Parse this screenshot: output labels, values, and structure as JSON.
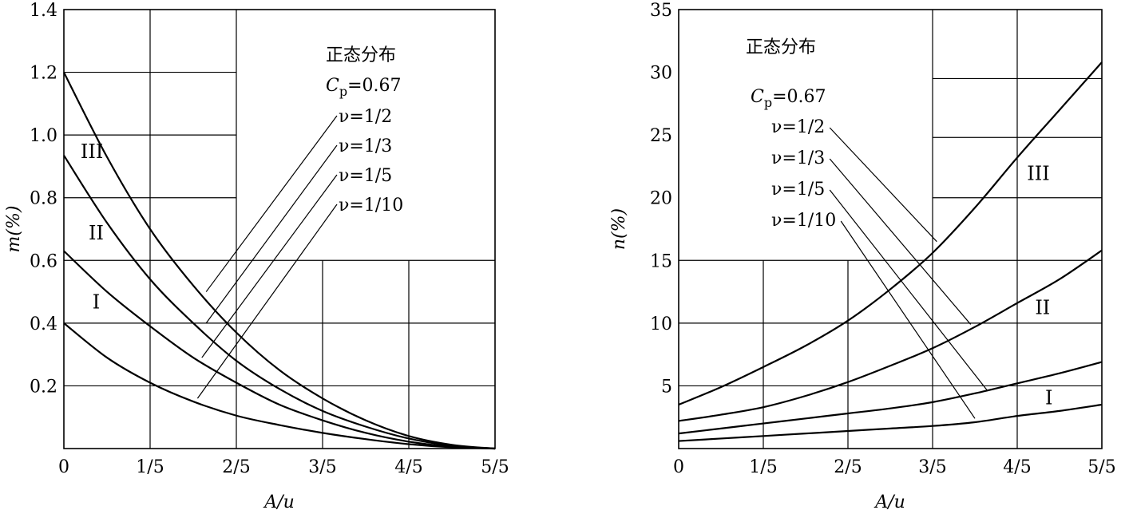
{
  "chart_data": [
    {
      "type": "line",
      "xlabel": "A/u",
      "ylabel": "m(%)",
      "xlim": [
        0,
        1
      ],
      "ylim": [
        0,
        1.4
      ],
      "xticks": [
        {
          "v": 0,
          "label": "0"
        },
        {
          "v": 0.2,
          "label": "1/5"
        },
        {
          "v": 0.4,
          "label": "2/5"
        },
        {
          "v": 0.6,
          "label": "3/5"
        },
        {
          "v": 0.8,
          "label": "4/5"
        },
        {
          "v": 1.0,
          "label": "5/5"
        }
      ],
      "yticks": [
        {
          "v": 0.2,
          "label": "0.2"
        },
        {
          "v": 0.4,
          "label": "0.4"
        },
        {
          "v": 0.6,
          "label": "0.6"
        },
        {
          "v": 0.8,
          "label": "0.8"
        },
        {
          "v": 1.0,
          "label": "1.0"
        },
        {
          "v": 1.2,
          "label": "1.2"
        },
        {
          "v": 1.4,
          "label": "1.4"
        }
      ],
      "x": [
        0,
        0.1,
        0.2,
        0.3,
        0.4,
        0.5,
        0.6,
        0.7,
        0.8,
        0.9,
        1.0
      ],
      "series": [
        {
          "values": [
            1.2,
            0.93,
            0.7,
            0.52,
            0.37,
            0.25,
            0.16,
            0.09,
            0.04,
            0.012,
            0
          ]
        },
        {
          "values": [
            0.935,
            0.72,
            0.54,
            0.4,
            0.28,
            0.19,
            0.12,
            0.07,
            0.032,
            0.009,
            0
          ]
        },
        {
          "values": [
            0.63,
            0.5,
            0.39,
            0.29,
            0.21,
            0.14,
            0.09,
            0.05,
            0.022,
            0.006,
            0
          ]
        },
        {
          "values": [
            0.4,
            0.29,
            0.21,
            0.15,
            0.105,
            0.075,
            0.05,
            0.03,
            0.014,
            0.004,
            0
          ]
        }
      ],
      "curve_labels": [
        {
          "text": "III",
          "x": 0.065,
          "y": 0.95
        },
        {
          "text": "II",
          "x": 0.075,
          "y": 0.69
        },
        {
          "text": "I",
          "x": 0.075,
          "y": 0.47
        }
      ],
      "annotation": {
        "title": "正态分布",
        "cp_symbol": "C",
        "cp_sub": "p",
        "cp_value": "=0.67",
        "nu_labels": [
          "ν=1/2",
          "ν=1/3",
          "ν=1/5",
          "ν=1/10"
        ],
        "leader_targets": [
          {
            "x": 0.33,
            "y": 0.5
          },
          {
            "x": 0.33,
            "y": 0.4
          },
          {
            "x": 0.32,
            "y": 0.29
          },
          {
            "x": 0.31,
            "y": 0.16
          }
        ]
      }
    },
    {
      "type": "line",
      "xlabel": "A/u",
      "ylabel": "n(%)",
      "xlim": [
        0,
        1
      ],
      "ylim": [
        0,
        35
      ],
      "xticks": [
        {
          "v": 0,
          "label": "0"
        },
        {
          "v": 0.2,
          "label": "1/5"
        },
        {
          "v": 0.4,
          "label": "2/5"
        },
        {
          "v": 0.6,
          "label": "3/5"
        },
        {
          "v": 0.8,
          "label": "4/5"
        },
        {
          "v": 1.0,
          "label": "5/5"
        }
      ],
      "yticks": [
        {
          "v": 5,
          "label": "5"
        },
        {
          "v": 10,
          "label": "10"
        },
        {
          "v": 15,
          "label": "15"
        },
        {
          "v": 20,
          "label": "20"
        },
        {
          "v": 25,
          "label": "25"
        },
        {
          "v": 30,
          "label": "30"
        },
        {
          "v": 35,
          "label": "35"
        }
      ],
      "x": [
        0,
        0.1,
        0.2,
        0.3,
        0.4,
        0.5,
        0.6,
        0.7,
        0.8,
        0.9,
        1.0
      ],
      "series": [
        {
          "values": [
            3.5,
            4.9,
            6.5,
            8.2,
            10.2,
            12.7,
            15.6,
            19.2,
            23.2,
            27.0,
            30.8
          ]
        },
        {
          "values": [
            2.2,
            2.7,
            3.3,
            4.2,
            5.3,
            6.6,
            8.0,
            9.7,
            11.6,
            13.5,
            15.8
          ]
        },
        {
          "values": [
            1.2,
            1.6,
            2.0,
            2.4,
            2.8,
            3.2,
            3.7,
            4.4,
            5.2,
            6.0,
            6.9
          ]
        },
        {
          "values": [
            0.6,
            0.8,
            1.0,
            1.2,
            1.4,
            1.6,
            1.8,
            2.1,
            2.6,
            3.0,
            3.5
          ]
        }
      ],
      "curve_labels": [
        {
          "text": "III",
          "x": 0.85,
          "y": 22.0
        },
        {
          "text": "II",
          "x": 0.86,
          "y": 11.3
        },
        {
          "text": "I",
          "x": 0.875,
          "y": 4.1
        }
      ],
      "annotation": {
        "title": "正态分布",
        "cp_symbol": "C",
        "cp_sub": "p",
        "cp_value": "=0.67",
        "nu_labels": [
          "ν=1/2",
          "ν=1/3",
          "ν=1/5",
          "ν=1/10"
        ],
        "leader_targets": [
          {
            "x": 0.61,
            "y": 16.5
          },
          {
            "x": 0.69,
            "y": 9.9
          },
          {
            "x": 0.73,
            "y": 4.6
          },
          {
            "x": 0.7,
            "y": 2.4
          }
        ]
      }
    }
  ]
}
